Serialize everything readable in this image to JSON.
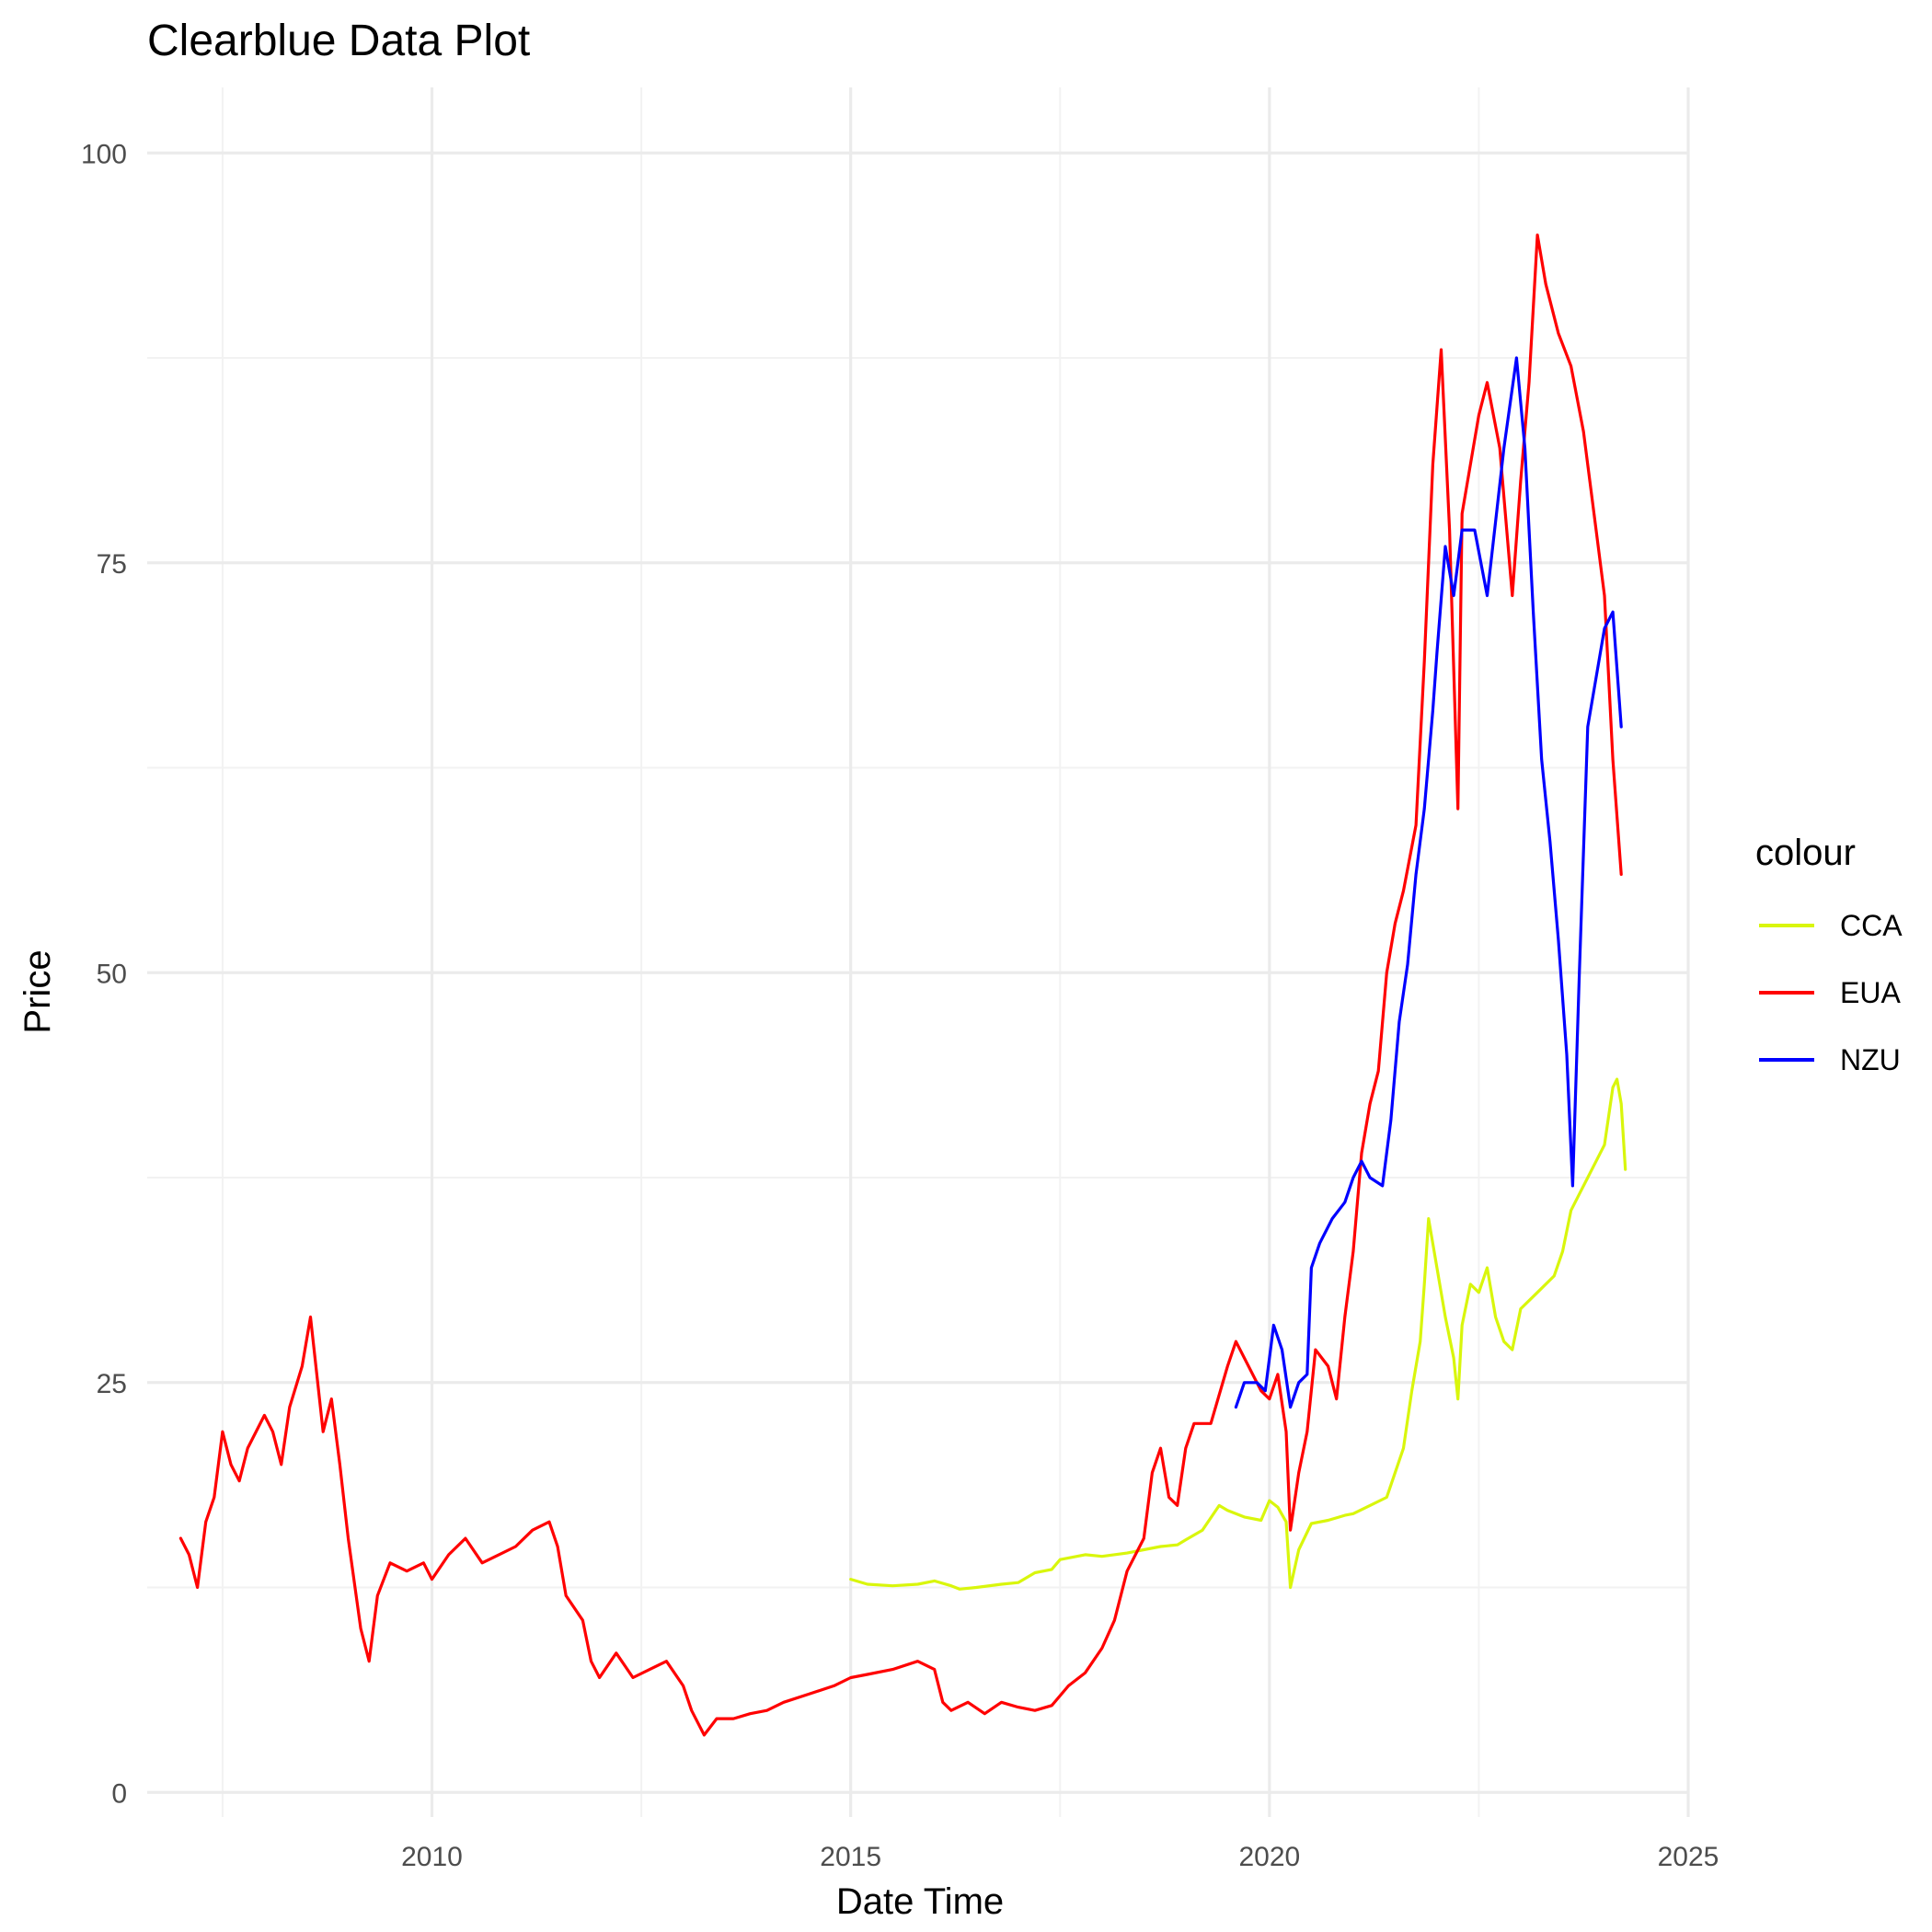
{
  "chart_data": {
    "type": "line",
    "title": "Clearblue Data Plot",
    "xlabel": "Date Time",
    "ylabel": "Price",
    "xlim": [
      2006.6,
      2025.0
    ],
    "ylim": [
      -1.5,
      104.0
    ],
    "x_ticks": [
      2010,
      2015,
      2020,
      2025
    ],
    "x_tick_labels": [
      "2010",
      "2015",
      "2020",
      "2025"
    ],
    "y_ticks": [
      0,
      25,
      50,
      75,
      100
    ],
    "y_tick_labels": [
      "0",
      "25",
      "50",
      "75",
      "100"
    ],
    "grid": true,
    "legend": {
      "title": "colour",
      "placement": "right"
    },
    "series": [
      {
        "name": "CCA",
        "color": "#D9F60C",
        "points": [
          [
            2015.0,
            13.0
          ],
          [
            2015.2,
            12.7
          ],
          [
            2015.5,
            12.6
          ],
          [
            2015.8,
            12.7
          ],
          [
            2016.0,
            12.9
          ],
          [
            2016.2,
            12.6
          ],
          [
            2016.3,
            12.4
          ],
          [
            2016.5,
            12.5
          ],
          [
            2016.8,
            12.7
          ],
          [
            2017.0,
            12.8
          ],
          [
            2017.2,
            13.4
          ],
          [
            2017.4,
            13.6
          ],
          [
            2017.5,
            14.2
          ],
          [
            2017.8,
            14.5
          ],
          [
            2018.0,
            14.4
          ],
          [
            2018.3,
            14.6
          ],
          [
            2018.5,
            14.8
          ],
          [
            2018.7,
            15.0
          ],
          [
            2018.9,
            15.1
          ],
          [
            2019.0,
            15.4
          ],
          [
            2019.2,
            16.0
          ],
          [
            2019.4,
            17.5
          ],
          [
            2019.5,
            17.2
          ],
          [
            2019.7,
            16.8
          ],
          [
            2019.9,
            16.6
          ],
          [
            2020.0,
            17.8
          ],
          [
            2020.1,
            17.4
          ],
          [
            2020.2,
            16.5
          ],
          [
            2020.25,
            12.5
          ],
          [
            2020.35,
            14.8
          ],
          [
            2020.5,
            16.4
          ],
          [
            2020.7,
            16.6
          ],
          [
            2020.9,
            16.9
          ],
          [
            2021.0,
            17.0
          ],
          [
            2021.2,
            17.5
          ],
          [
            2021.4,
            18.0
          ],
          [
            2021.5,
            19.5
          ],
          [
            2021.6,
            21.0
          ],
          [
            2021.7,
            24.5
          ],
          [
            2021.8,
            27.5
          ],
          [
            2021.85,
            31.0
          ],
          [
            2021.9,
            35.0
          ],
          [
            2022.0,
            32.0
          ],
          [
            2022.1,
            29.0
          ],
          [
            2022.2,
            26.5
          ],
          [
            2022.25,
            24.0
          ],
          [
            2022.3,
            28.5
          ],
          [
            2022.4,
            31.0
          ],
          [
            2022.5,
            30.5
          ],
          [
            2022.6,
            32.0
          ],
          [
            2022.7,
            29.0
          ],
          [
            2022.8,
            27.5
          ],
          [
            2022.9,
            27.0
          ],
          [
            2023.0,
            29.5
          ],
          [
            2023.2,
            30.5
          ],
          [
            2023.4,
            31.5
          ],
          [
            2023.5,
            33.0
          ],
          [
            2023.6,
            35.5
          ],
          [
            2023.7,
            36.5
          ],
          [
            2023.8,
            37.5
          ],
          [
            2023.9,
            38.5
          ],
          [
            2024.0,
            39.5
          ],
          [
            2024.1,
            43.0
          ],
          [
            2024.15,
            43.5
          ],
          [
            2024.2,
            42.0
          ],
          [
            2024.25,
            38.0
          ]
        ]
      },
      {
        "name": "EUA",
        "color": "#FF0000",
        "points": [
          [
            2007.0,
            15.5
          ],
          [
            2007.1,
            14.5
          ],
          [
            2007.2,
            12.5
          ],
          [
            2007.3,
            16.5
          ],
          [
            2007.4,
            18.0
          ],
          [
            2007.5,
            22.0
          ],
          [
            2007.6,
            20.0
          ],
          [
            2007.7,
            19.0
          ],
          [
            2007.8,
            21.0
          ],
          [
            2008.0,
            23.0
          ],
          [
            2008.1,
            22.0
          ],
          [
            2008.2,
            20.0
          ],
          [
            2008.3,
            23.5
          ],
          [
            2008.45,
            26.0
          ],
          [
            2008.55,
            29.0
          ],
          [
            2008.7,
            22.0
          ],
          [
            2008.8,
            24.0
          ],
          [
            2008.9,
            20.0
          ],
          [
            2009.0,
            15.5
          ],
          [
            2009.15,
            10.0
          ],
          [
            2009.25,
            8.0
          ],
          [
            2009.35,
            12.0
          ],
          [
            2009.5,
            14.0
          ],
          [
            2009.7,
            13.5
          ],
          [
            2009.9,
            14.0
          ],
          [
            2010.0,
            13.0
          ],
          [
            2010.2,
            14.5
          ],
          [
            2010.4,
            15.5
          ],
          [
            2010.6,
            14.0
          ],
          [
            2010.8,
            14.5
          ],
          [
            2011.0,
            15.0
          ],
          [
            2011.2,
            16.0
          ],
          [
            2011.4,
            16.5
          ],
          [
            2011.5,
            15.0
          ],
          [
            2011.6,
            12.0
          ],
          [
            2011.8,
            10.5
          ],
          [
            2011.9,
            8.0
          ],
          [
            2012.0,
            7.0
          ],
          [
            2012.2,
            8.5
          ],
          [
            2012.4,
            7.0
          ],
          [
            2012.6,
            7.5
          ],
          [
            2012.8,
            8.0
          ],
          [
            2013.0,
            6.5
          ],
          [
            2013.1,
            5.0
          ],
          [
            2013.25,
            3.5
          ],
          [
            2013.4,
            4.5
          ],
          [
            2013.6,
            4.5
          ],
          [
            2013.8,
            4.8
          ],
          [
            2014.0,
            5.0
          ],
          [
            2014.2,
            5.5
          ],
          [
            2014.5,
            6.0
          ],
          [
            2014.8,
            6.5
          ],
          [
            2015.0,
            7.0
          ],
          [
            2015.2,
            7.2
          ],
          [
            2015.5,
            7.5
          ],
          [
            2015.8,
            8.0
          ],
          [
            2016.0,
            7.5
          ],
          [
            2016.1,
            5.5
          ],
          [
            2016.2,
            5.0
          ],
          [
            2016.4,
            5.5
          ],
          [
            2016.6,
            4.8
          ],
          [
            2016.8,
            5.5
          ],
          [
            2017.0,
            5.2
          ],
          [
            2017.2,
            5.0
          ],
          [
            2017.4,
            5.3
          ],
          [
            2017.6,
            6.5
          ],
          [
            2017.8,
            7.3
          ],
          [
            2018.0,
            8.8
          ],
          [
            2018.15,
            10.5
          ],
          [
            2018.3,
            13.5
          ],
          [
            2018.5,
            15.5
          ],
          [
            2018.6,
            19.5
          ],
          [
            2018.7,
            21.0
          ],
          [
            2018.8,
            18.0
          ],
          [
            2018.9,
            17.5
          ],
          [
            2019.0,
            21.0
          ],
          [
            2019.1,
            22.5
          ],
          [
            2019.3,
            22.5
          ],
          [
            2019.5,
            26.0
          ],
          [
            2019.6,
            27.5
          ],
          [
            2019.75,
            26.0
          ],
          [
            2019.9,
            24.5
          ],
          [
            2020.0,
            24.0
          ],
          [
            2020.1,
            25.5
          ],
          [
            2020.2,
            22.0
          ],
          [
            2020.25,
            16.0
          ],
          [
            2020.35,
            19.5
          ],
          [
            2020.45,
            22.0
          ],
          [
            2020.55,
            27.0
          ],
          [
            2020.7,
            26.0
          ],
          [
            2020.8,
            24.0
          ],
          [
            2020.9,
            29.0
          ],
          [
            2021.0,
            33.0
          ],
          [
            2021.1,
            39.0
          ],
          [
            2021.2,
            42.0
          ],
          [
            2021.3,
            44.0
          ],
          [
            2021.4,
            50.0
          ],
          [
            2021.5,
            53.0
          ],
          [
            2021.6,
            55.0
          ],
          [
            2021.75,
            59.0
          ],
          [
            2021.85,
            69.0
          ],
          [
            2021.95,
            81.0
          ],
          [
            2022.05,
            88.0
          ],
          [
            2022.15,
            77.0
          ],
          [
            2022.25,
            60.0
          ],
          [
            2022.3,
            78.0
          ],
          [
            2022.5,
            84.0
          ],
          [
            2022.6,
            86.0
          ],
          [
            2022.75,
            82.0
          ],
          [
            2022.9,
            73.0
          ],
          [
            2023.0,
            80.0
          ],
          [
            2023.1,
            86.0
          ],
          [
            2023.2,
            95.0
          ],
          [
            2023.3,
            92.0
          ],
          [
            2023.45,
            89.0
          ],
          [
            2023.6,
            87.0
          ],
          [
            2023.75,
            83.0
          ],
          [
            2023.9,
            77.0
          ],
          [
            2024.0,
            73.0
          ],
          [
            2024.1,
            63.0
          ],
          [
            2024.2,
            56.0
          ]
        ]
      },
      {
        "name": "NZU",
        "color": "#0000FF",
        "points": [
          [
            2019.6,
            23.5
          ],
          [
            2019.7,
            25.0
          ],
          [
            2019.85,
            25.0
          ],
          [
            2019.95,
            24.5
          ],
          [
            2020.05,
            28.5
          ],
          [
            2020.15,
            27.0
          ],
          [
            2020.25,
            23.5
          ],
          [
            2020.35,
            25.0
          ],
          [
            2020.45,
            25.5
          ],
          [
            2020.5,
            32.0
          ],
          [
            2020.6,
            33.5
          ],
          [
            2020.75,
            35.0
          ],
          [
            2020.9,
            36.0
          ],
          [
            2021.0,
            37.5
          ],
          [
            2021.1,
            38.5
          ],
          [
            2021.2,
            37.5
          ],
          [
            2021.35,
            37.0
          ],
          [
            2021.45,
            41.0
          ],
          [
            2021.55,
            47.0
          ],
          [
            2021.65,
            50.5
          ],
          [
            2021.75,
            56.0
          ],
          [
            2021.85,
            60.0
          ],
          [
            2021.95,
            66.0
          ],
          [
            2022.0,
            69.5
          ],
          [
            2022.1,
            76.0
          ],
          [
            2022.2,
            73.0
          ],
          [
            2022.3,
            77.0
          ],
          [
            2022.45,
            77.0
          ],
          [
            2022.6,
            73.0
          ],
          [
            2022.8,
            82.0
          ],
          [
            2022.95,
            87.5
          ],
          [
            2023.05,
            82.0
          ],
          [
            2023.15,
            72.0
          ],
          [
            2023.25,
            63.0
          ],
          [
            2023.35,
            58.0
          ],
          [
            2023.45,
            52.0
          ],
          [
            2023.55,
            45.0
          ],
          [
            2023.62,
            37.0
          ],
          [
            2023.7,
            50.0
          ],
          [
            2023.8,
            65.0
          ],
          [
            2023.9,
            68.0
          ],
          [
            2024.0,
            71.0
          ],
          [
            2024.1,
            72.0
          ],
          [
            2024.2,
            65.0
          ]
        ]
      }
    ]
  }
}
